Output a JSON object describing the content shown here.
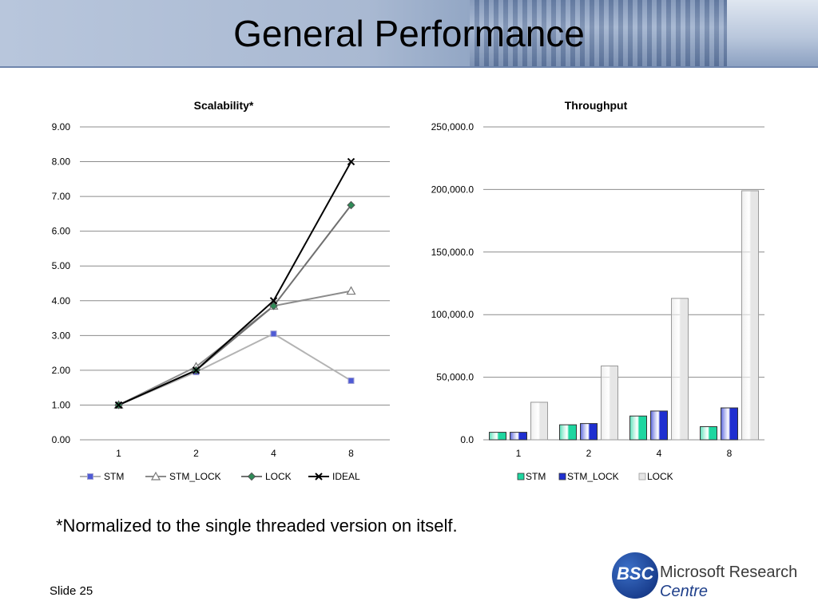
{
  "slide": {
    "title": "General Performance",
    "footnote": "*Normalized to the single threaded version on itself.",
    "number": "Slide 25",
    "logo": {
      "mark": "BSC",
      "name": "Microsoft Research",
      "centre": "Centre"
    }
  },
  "chart_data": [
    {
      "type": "line",
      "title": "Scalability*",
      "categories": [
        "1",
        "2",
        "4",
        "8"
      ],
      "ylim": [
        0,
        9
      ],
      "yticks": [
        "0.00",
        "1.00",
        "2.00",
        "3.00",
        "4.00",
        "5.00",
        "6.00",
        "7.00",
        "8.00",
        "9.00"
      ],
      "grid": true,
      "legend": "bottom",
      "series": [
        {
          "name": "STM",
          "values": [
            1.0,
            1.95,
            3.05,
            1.7
          ],
          "color": "#b3b3b3",
          "marker": "square",
          "marker_color": "#4f5bd5"
        },
        {
          "name": "STM_LOCK",
          "values": [
            1.0,
            2.1,
            3.85,
            4.28
          ],
          "color": "#8c8c8c",
          "marker": "triangle",
          "marker_color": "#ffffff"
        },
        {
          "name": "LOCK",
          "values": [
            1.0,
            2.0,
            3.85,
            6.75
          ],
          "color": "#707070",
          "marker": "diamond",
          "marker_color": "#2e8b57"
        },
        {
          "name": "IDEAL",
          "values": [
            1.0,
            2.0,
            4.0,
            8.0
          ],
          "color": "#000000",
          "marker": "x",
          "marker_color": "#000000"
        }
      ]
    },
    {
      "type": "bar",
      "title": "Throughput",
      "categories": [
        "1",
        "2",
        "4",
        "8"
      ],
      "ylim": [
        0,
        250000
      ],
      "yticks": [
        "0.0",
        "50,000.0",
        "100,000.0",
        "150,000.0",
        "200,000.0",
        "250,000.0"
      ],
      "grid": true,
      "legend": "bottom",
      "series": [
        {
          "name": "STM",
          "values": [
            6000,
            12000,
            19000,
            10500
          ],
          "color": "#1fd6a0"
        },
        {
          "name": "STM_LOCK",
          "values": [
            6000,
            13000,
            23000,
            25500
          ],
          "color": "#1f2fd0"
        },
        {
          "name": "LOCK",
          "values": [
            30000,
            59000,
            113000,
            199000
          ],
          "color": "#e6e6e6"
        }
      ]
    }
  ]
}
